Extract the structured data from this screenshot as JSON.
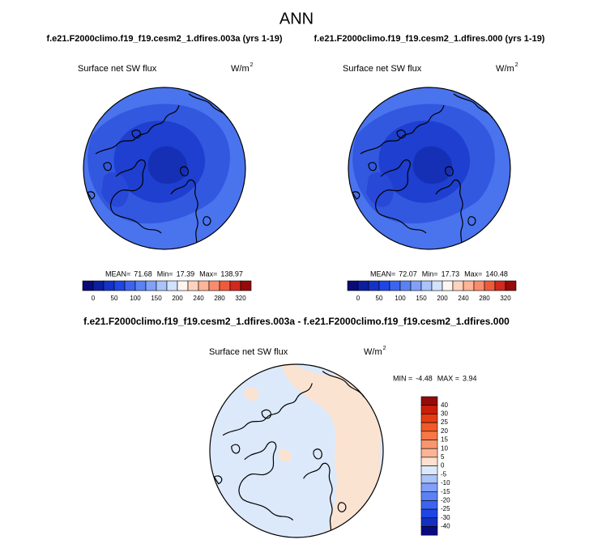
{
  "title": "ANN",
  "panels": [
    {
      "subtitle": "f.e21.F2000climo.f19_f19.cesm2_1.dfires.003a (yrs 1-19)",
      "variable": "Surface net SW flux",
      "units": "W/m",
      "units_exponent": "2",
      "stats": [
        {
          "label": "MEAN=",
          "value": 71.68
        },
        {
          "label": "Min=",
          "value": 17.39
        },
        {
          "label": "Max=",
          "value": 138.97
        }
      ]
    },
    {
      "subtitle": "f.e21.F2000climo.f19_f19.cesm2_1.dfires.000 (yrs 1-19)",
      "variable": "Surface net SW flux",
      "units": "W/m",
      "units_exponent": "2",
      "stats": [
        {
          "label": "MEAN=",
          "value": 72.07
        },
        {
          "label": "Min=",
          "value": 17.73
        },
        {
          "label": "Max=",
          "value": 140.48
        }
      ]
    }
  ],
  "colorbar": {
    "ticks": [
      0,
      null,
      50,
      null,
      100,
      null,
      150,
      null,
      200,
      null,
      240,
      null,
      280,
      null,
      320
    ],
    "colors": [
      "#0a0a78",
      "#0c1ea0",
      "#1432c8",
      "#1e46e6",
      "#3c64f0",
      "#5a82f5",
      "#82a0fa",
      "#aac3fa",
      "#d2e1ff",
      "#fff5f0",
      "#ffd2be",
      "#ffb496",
      "#fa8c6e",
      "#f05a3c",
      "#d2281e",
      "#960a0a"
    ]
  },
  "difference": {
    "title": "f.e21.F2000climo.f19_f19.cesm2_1.dfires.003a - f.e21.F2000climo.f19_f19.cesm2_1.dfires.000",
    "variable": "Surface net SW flux",
    "units": "W/m",
    "units_exponent": "2",
    "stats": [
      {
        "label": "MIN =",
        "value": -4.48
      },
      {
        "label": "MAX =",
        "value": 3.94
      }
    ],
    "colorbar": {
      "ticks": [
        40,
        30,
        25,
        20,
        15,
        10,
        5,
        0,
        -5,
        -10,
        -15,
        -20,
        -25,
        -30,
        -40
      ],
      "colors": [
        "#960a0a",
        "#c81e0a",
        "#e63c14",
        "#f05a28",
        "#f57846",
        "#fa966e",
        "#fcb496",
        "#fde1cf",
        "#dce9fb",
        "#aac3fa",
        "#82a0fa",
        "#5a82f5",
        "#3c64f0",
        "#1e46e6",
        "#1430c0",
        "#0a0a80"
      ]
    }
  }
}
